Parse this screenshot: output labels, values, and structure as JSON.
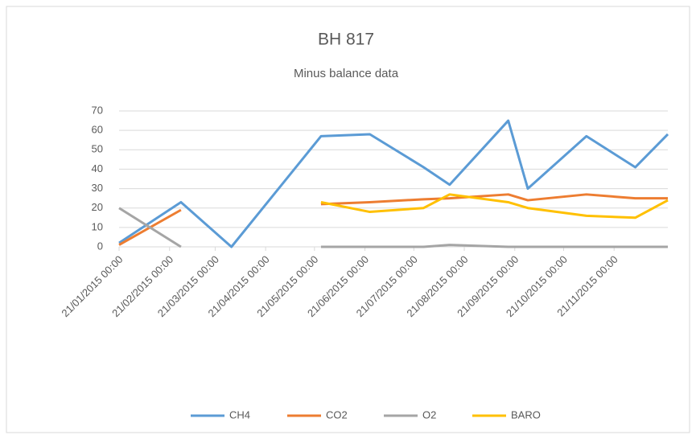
{
  "chart_data": {
    "type": "line",
    "title": "BH 817",
    "subtitle": "Minus balance data",
    "x": [
      "21/01/2015 00:00",
      "28/02/2015 00:00",
      "31/03/2015 00:00",
      "25/05/2015 00:00",
      "24/06/2015 00:00",
      "27/07/2015 00:00",
      "12/08/2015 00:00",
      "17/09/2015 00:00",
      "29/09/2015 00:00",
      "04/11/2015 00:00",
      "04/12/2015 00:00",
      "24/12/2015 00:00"
    ],
    "series": [
      {
        "name": "CH4",
        "color": "#5b9bd5",
        "values": [
          2,
          23,
          0,
          57,
          58,
          41,
          32,
          65,
          30,
          57,
          41,
          58
        ]
      },
      {
        "name": "CO2",
        "color": "#ed7d31",
        "values": [
          1,
          19,
          null,
          22,
          23,
          24.5,
          25,
          27,
          24,
          27,
          25,
          25
        ]
      },
      {
        "name": "O2",
        "color": "#a5a5a5",
        "values": [
          20,
          0,
          null,
          0,
          0,
          0,
          1,
          0,
          0,
          0,
          0,
          0
        ]
      },
      {
        "name": "BARO",
        "color": "#ffc000",
        "values": [
          null,
          null,
          null,
          23,
          18,
          20,
          27,
          23,
          20,
          16,
          15,
          24
        ]
      }
    ],
    "xlim": [
      "21/01/2015 00:00",
      "24/12/2015 00:00"
    ],
    "xticks": [
      "21/01/2015 00:00",
      "21/02/2015 00:00",
      "21/03/2015 00:00",
      "21/04/2015 00:00",
      "21/05/2015 00:00",
      "21/06/2015 00:00",
      "21/07/2015 00:00",
      "21/08/2015 00:00",
      "21/09/2015 00:00",
      "21/10/2015 00:00",
      "21/11/2015 00:00"
    ],
    "ylim": [
      0,
      70
    ],
    "yticks": [
      0,
      10,
      20,
      30,
      40,
      50,
      60,
      70
    ],
    "grid": true,
    "legend": "bottom"
  }
}
